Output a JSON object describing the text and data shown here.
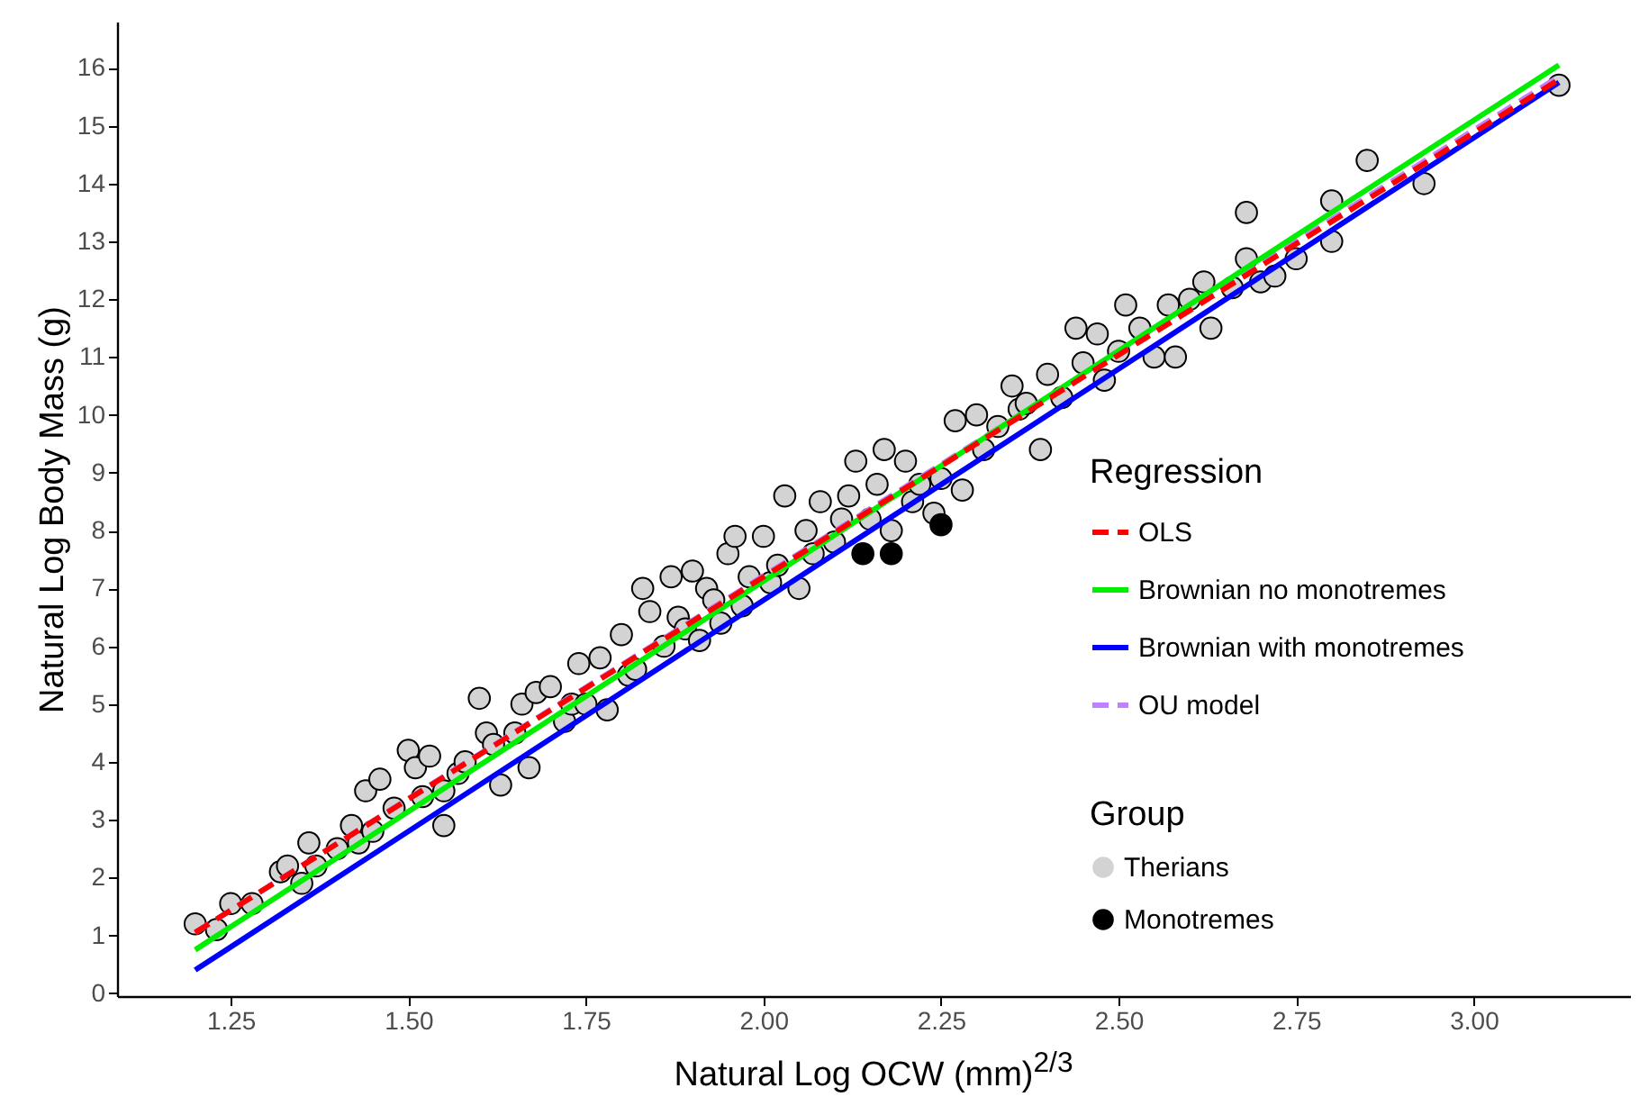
{
  "chart_data": {
    "type": "scatter",
    "xlabel": "Natural Log OCW (mm)$^{2/3}$",
    "ylabel": "Natural Log Body Mass (g)",
    "legend_title": [
      "Regression",
      "Group"
    ],
    "legend": "bottom right",
    "xlim": [
      1.09,
      3.22
    ],
    "ylim": [
      -0.05,
      16.8
    ],
    "xticks": [
      {
        "value": 1.25,
        "label": "1.25"
      },
      {
        "value": 1.5,
        "label": "1.50"
      },
      {
        "value": 1.75,
        "label": "1.75"
      },
      {
        "value": 2,
        "label": "2.00"
      },
      {
        "value": 2.25,
        "label": "2.25"
      },
      {
        "value": 2.5,
        "label": "2.50"
      },
      {
        "value": 2.75,
        "label": "2.75"
      },
      {
        "value": 3,
        "label": "3.00"
      }
    ],
    "yticks": [
      0,
      1,
      2,
      3,
      4,
      5,
      6,
      7,
      8,
      9,
      10,
      11,
      12,
      13,
      14,
      15,
      16
    ],
    "series": [
      {
        "name": "Therians",
        "type": "scatter",
        "marker": "circle",
        "color": "#d3d3d3",
        "x": [
          1.2,
          1.23,
          1.25,
          1.28,
          1.32,
          1.33,
          1.35,
          1.36,
          1.37,
          1.4,
          1.42,
          1.43,
          1.44,
          1.45,
          1.46,
          1.48,
          1.5,
          1.51,
          1.52,
          1.53,
          1.55,
          1.55,
          1.57,
          1.58,
          1.6,
          1.61,
          1.62,
          1.63,
          1.65,
          1.66,
          1.67,
          1.68,
          1.7,
          1.72,
          1.73,
          1.74,
          1.75,
          1.77,
          1.78,
          1.8,
          1.81,
          1.82,
          1.83,
          1.84,
          1.86,
          1.87,
          1.88,
          1.89,
          1.9,
          1.91,
          1.92,
          1.93,
          1.94,
          1.95,
          1.96,
          1.97,
          1.98,
          2.0,
          2.01,
          2.02,
          2.03,
          2.05,
          2.06,
          2.07,
          2.08,
          2.1,
          2.11,
          2.12,
          2.13,
          2.15,
          2.16,
          2.17,
          2.18,
          2.2,
          2.21,
          2.22,
          2.24,
          2.25,
          2.27,
          2.28,
          2.3,
          2.31,
          2.33,
          2.35,
          2.36,
          2.37,
          2.39,
          2.4,
          2.42,
          2.44,
          2.45,
          2.47,
          2.48,
          2.5,
          2.51,
          2.53,
          2.55,
          2.57,
          2.58,
          2.6,
          2.62,
          2.63,
          2.66,
          2.68,
          2.68,
          2.7,
          2.72,
          2.75,
          2.8,
          2.8,
          2.85,
          2.93,
          3.12
        ],
        "values": [
          1.2,
          1.1,
          1.55,
          1.55,
          2.1,
          2.2,
          1.9,
          2.6,
          2.2,
          2.5,
          2.9,
          2.6,
          3.5,
          2.8,
          3.7,
          3.2,
          4.2,
          3.9,
          3.4,
          4.1,
          2.9,
          3.5,
          3.8,
          4.0,
          5.1,
          4.5,
          4.3,
          3.6,
          4.5,
          5.0,
          3.9,
          5.2,
          5.3,
          4.7,
          5.0,
          5.7,
          5.0,
          5.8,
          4.9,
          6.2,
          5.5,
          5.6,
          7.0,
          6.6,
          6.0,
          7.2,
          6.5,
          6.3,
          7.3,
          6.1,
          7.0,
          6.8,
          6.4,
          7.6,
          7.9,
          6.7,
          7.2,
          7.9,
          7.1,
          7.4,
          8.6,
          7.0,
          8.0,
          7.6,
          8.5,
          7.8,
          8.2,
          8.6,
          9.2,
          8.2,
          8.8,
          9.4,
          8.0,
          9.2,
          8.5,
          8.8,
          8.3,
          8.9,
          9.9,
          8.7,
          10.0,
          9.4,
          9.8,
          10.5,
          10.1,
          10.2,
          9.4,
          10.7,
          10.3,
          11.5,
          10.9,
          11.4,
          10.6,
          11.1,
          11.9,
          11.5,
          11.0,
          11.9,
          11.0,
          12.0,
          12.3,
          11.5,
          12.2,
          13.5,
          12.7,
          12.3,
          12.4,
          12.7,
          13.7,
          13.0,
          14.4,
          14.0,
          15.7
        ]
      },
      {
        "name": "Monotremes",
        "type": "scatter",
        "marker": "circle",
        "color": "#000000",
        "x": [
          2.14,
          2.18,
          2.25
        ],
        "values": [
          7.6,
          7.6,
          8.1
        ]
      },
      {
        "name": "OLS",
        "type": "line",
        "line_style": "dashed",
        "color": "#ff0000",
        "x": [
          1.2,
          3.12
        ],
        "values": [
          1.05,
          15.8
        ]
      },
      {
        "name": "Brownian no monotremes",
        "type": "line",
        "line_style": "solid",
        "color": "#00ee00",
        "x": [
          1.2,
          3.12
        ],
        "values": [
          0.75,
          16.05
        ]
      },
      {
        "name": "Brownian with monotremes",
        "type": "line",
        "line_style": "solid",
        "color": "#0000ff",
        "x": [
          1.2,
          3.12
        ],
        "values": [
          0.4,
          15.75
        ]
      },
      {
        "name": "OU model",
        "type": "line",
        "line_style": "dashed",
        "color": "#c080ff",
        "x": [
          1.2,
          3.12
        ],
        "values": [
          1.05,
          15.85
        ]
      }
    ]
  }
}
